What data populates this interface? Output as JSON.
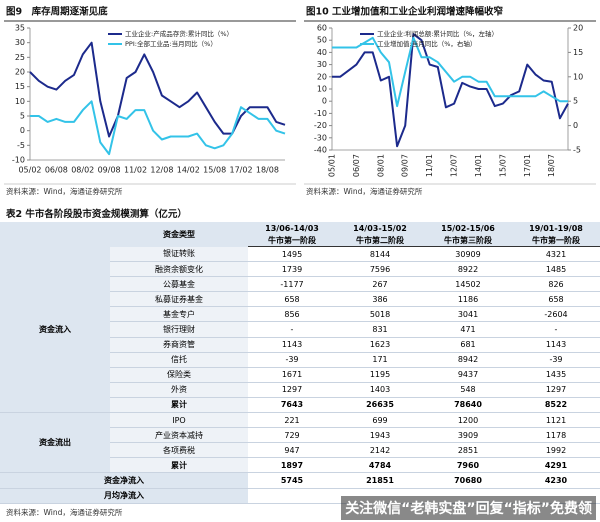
{
  "chart_data": [
    {
      "type": "line",
      "title": "图9　库存周期逐渐见底",
      "source": "资料来源：Wind，海通证券研究所",
      "categories": [
        "05/02",
        null,
        null,
        "06/08",
        null,
        null,
        "08/02",
        null,
        null,
        "09/08",
        null,
        null,
        "11/02",
        null,
        null,
        "12/08",
        null,
        null,
        "14/02",
        null,
        null,
        "15/08",
        null,
        null,
        "17/02",
        null,
        null,
        "18/08",
        null,
        null
      ],
      "series": [
        {
          "name": "工业企业:产成品存货:累计同比（%）",
          "color": "#1c2a8c",
          "values": [
            20,
            17,
            15,
            14,
            17,
            19,
            26,
            30,
            10,
            -2,
            5,
            18,
            20,
            26,
            20,
            12,
            10,
            8,
            10,
            13,
            8,
            3,
            -1,
            -1,
            5,
            8,
            8,
            8,
            3,
            2
          ]
        },
        {
          "name": "PPI:全部工业品:当月同比（%）",
          "color": "#33c3e8",
          "values": [
            5,
            5,
            3,
            4,
            3,
            3,
            7,
            10,
            -4,
            -8,
            5,
            4,
            7,
            7,
            0,
            -3,
            -2,
            -2,
            -2,
            -1,
            -5,
            -6,
            -5,
            -1,
            8,
            6,
            4,
            4,
            0,
            -1
          ]
        }
      ],
      "ylim": [
        -10,
        35
      ],
      "yticks": [
        -10,
        -5,
        0,
        5,
        10,
        15,
        20,
        25,
        30,
        35
      ],
      "legend": "top"
    },
    {
      "type": "line",
      "title": "图10 工业增加值和工业企业利润增速降幅收窄",
      "source": "资料来源：Wind，海通证券研究所",
      "categories": [
        "05/01",
        null,
        null,
        "06/07",
        null,
        null,
        "08/01",
        null,
        null,
        "09/07",
        null,
        null,
        "11/01",
        null,
        null,
        "12/07",
        null,
        null,
        "14/01",
        null,
        null,
        "15/07",
        null,
        null,
        "17/01",
        null,
        null,
        "18/07",
        null,
        null
      ],
      "series": [
        {
          "name": "工业企业:利润总额:累计同比（%，左轴）",
          "color": "#1c2a8c",
          "values": [
            20,
            20,
            25,
            30,
            40,
            40,
            17,
            20,
            -37,
            -20,
            55,
            50,
            30,
            28,
            -5,
            -2,
            15,
            12,
            10,
            10,
            -4,
            -2,
            5,
            8,
            30,
            22,
            17,
            16,
            -14,
            -2
          ]
        },
        {
          "name": "工业增加值:当月同比（%，右轴）",
          "color": "#33c3e8",
          "axis": "y2",
          "values": [
            16,
            16,
            16,
            16,
            17,
            18,
            15,
            13,
            4,
            11,
            18,
            14,
            14,
            13,
            11,
            9,
            10,
            10,
            9,
            9,
            6,
            6,
            6,
            6,
            6,
            6,
            7,
            6,
            5,
            5
          ]
        }
      ],
      "ylim": [
        -40,
        60
      ],
      "yticks": [
        -40,
        -30,
        -20,
        -10,
        0,
        10,
        20,
        30,
        40,
        50,
        60
      ],
      "y2lim": [
        -5,
        20
      ],
      "y2ticks": [
        -5,
        0,
        5,
        10,
        15,
        20
      ],
      "legend": "top"
    }
  ],
  "table": {
    "title": "表2 牛市各阶段股市资金规模测算（亿元）",
    "type_label": "资金类型",
    "periods": [
      {
        "range": "13/06-14/03",
        "phase": "牛市第一阶段"
      },
      {
        "range": "14/03-15/02",
        "phase": "牛市第二阶段"
      },
      {
        "range": "15/02-15/06",
        "phase": "牛市第三阶段"
      },
      {
        "range": "19/01-19/08",
        "phase": "牛市第一阶段"
      }
    ],
    "groups": [
      {
        "name": "资金流入",
        "rows": [
          {
            "label": "银证转账",
            "values": [
              1495,
              8144,
              30909,
              4321
            ]
          },
          {
            "label": "融资余额变化",
            "values": [
              1739,
              7596,
              8922,
              1485
            ]
          },
          {
            "label": "公募基金",
            "values": [
              -1177,
              267,
              14502,
              826
            ]
          },
          {
            "label": "私募证券基金",
            "values": [
              658,
              386,
              1186,
              658
            ]
          },
          {
            "label": "基金专户",
            "values": [
              856,
              5018,
              3041,
              -2604
            ]
          },
          {
            "label": "银行理财",
            "values": [
              "-",
              831,
              471,
              "-"
            ]
          },
          {
            "label": "券商资管",
            "values": [
              1143,
              1623,
              681,
              1143
            ]
          },
          {
            "label": "信托",
            "values": [
              -39,
              171,
              8942,
              -39
            ]
          },
          {
            "label": "保险类",
            "values": [
              1671,
              1195,
              9437,
              1435
            ]
          },
          {
            "label": "外资",
            "values": [
              1297,
              1403,
              548,
              1297
            ]
          },
          {
            "label": "累计",
            "values": [
              7643,
              26635,
              78640,
              8522
            ]
          }
        ]
      },
      {
        "name": "资金流出",
        "rows": [
          {
            "label": "IPO",
            "values": [
              221,
              699,
              1200,
              1121
            ]
          },
          {
            "label": "产业资本减持",
            "values": [
              729,
              1943,
              3909,
              1178
            ]
          },
          {
            "label": "各项费税",
            "values": [
              947,
              2142,
              2851,
              1992
            ]
          },
          {
            "label": "累计",
            "values": [
              1897,
              4784,
              7960,
              4291
            ]
          }
        ]
      }
    ],
    "totals": [
      {
        "label": "资金净流入",
        "values": [
          5745,
          21851,
          70680,
          4230
        ]
      },
      {
        "label": "月均净流入"
      }
    ],
    "source": "资料来源：Wind，海通证券研究所"
  },
  "watermark": "关注微信“老韩实盘”回复“指标”免费领"
}
